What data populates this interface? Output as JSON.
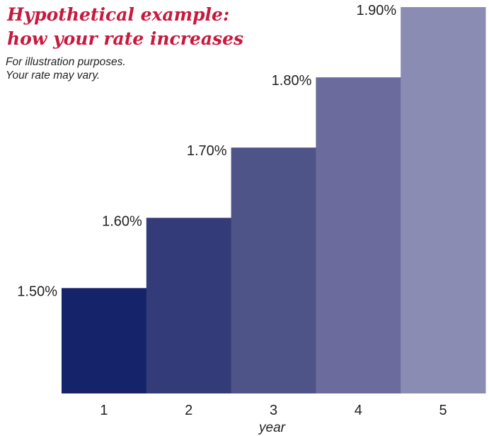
{
  "chart_data": {
    "type": "bar",
    "title_lines": [
      "Hypothetical example:",
      "how your rate increases"
    ],
    "subtitle_lines": [
      "For illustration purposes.",
      "Your rate may vary."
    ],
    "xlabel": "year",
    "ylabel": "",
    "categories": [
      "1",
      "2",
      "3",
      "4",
      "5"
    ],
    "values": [
      1.5,
      1.6,
      1.7,
      1.8,
      1.9
    ],
    "data_labels": [
      "1.50%",
      "1.60%",
      "1.70%",
      "1.80%",
      "1.90%"
    ],
    "unit": "%",
    "ylim": [
      1.35,
      1.9
    ],
    "grid": false,
    "legend": "none",
    "colors": [
      "#15236a",
      "#333b78",
      "#4f5488",
      "#6b6c9d",
      "#8a8cb3"
    ],
    "title_color": "#c8193c"
  }
}
